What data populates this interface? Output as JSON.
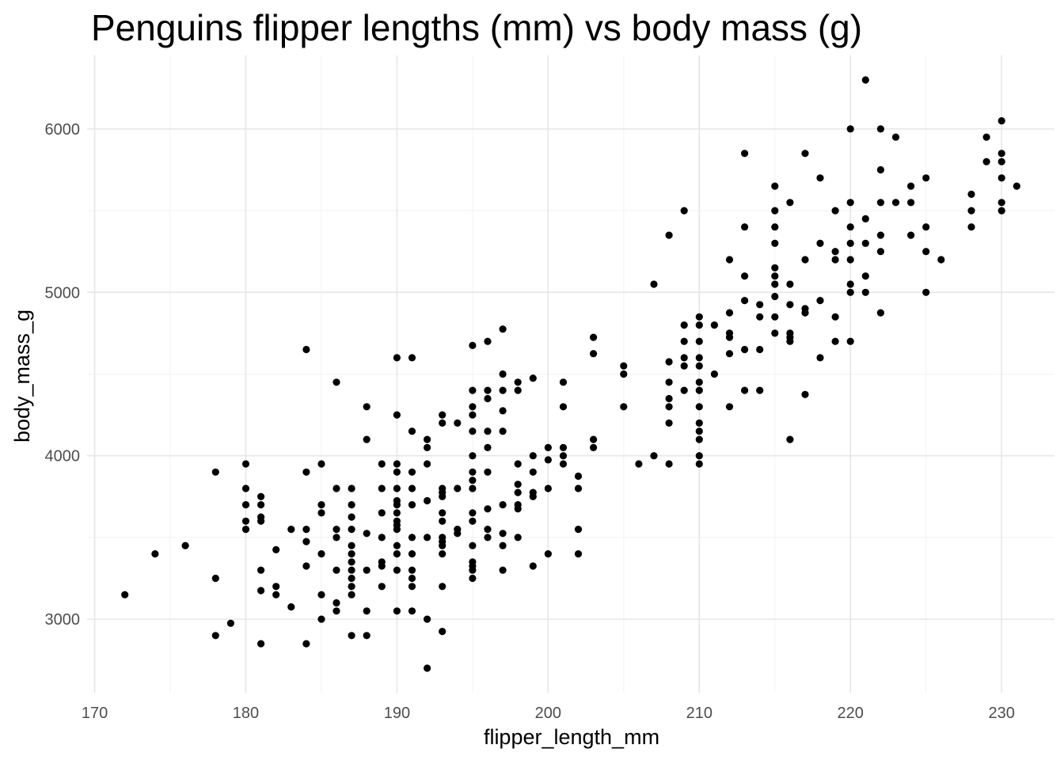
{
  "chart_data": {
    "type": "scatter",
    "title": "Penguins flipper lengths (mm) vs body mass (g)",
    "xlabel": "flipper_length_mm",
    "ylabel": "body_mass_g",
    "xlim": [
      169.5,
      233.5
    ],
    "ylim": [
      2550,
      6450
    ],
    "xticks": [
      170,
      180,
      190,
      200,
      210,
      220,
      230
    ],
    "yticks": [
      3000,
      4000,
      5000,
      6000
    ],
    "grid": true,
    "point_color": "#000000",
    "points": [
      [
        172,
        3150
      ],
      [
        174,
        3400
      ],
      [
        176,
        3450
      ],
      [
        178,
        3900
      ],
      [
        178,
        3250
      ],
      [
        178,
        2900
      ],
      [
        179,
        2975
      ],
      [
        180,
        3950
      ],
      [
        180,
        3800
      ],
      [
        180,
        3700
      ],
      [
        180,
        3600
      ],
      [
        180,
        3550
      ],
      [
        181,
        3750
      ],
      [
        181,
        3700
      ],
      [
        181,
        3625
      ],
      [
        181,
        3600
      ],
      [
        181,
        3300
      ],
      [
        181,
        3175
      ],
      [
        181,
        2850
      ],
      [
        182,
        3425
      ],
      [
        182,
        3200
      ],
      [
        182,
        3150
      ],
      [
        183,
        3550
      ],
      [
        183,
        3075
      ],
      [
        184,
        4650
      ],
      [
        184,
        3900
      ],
      [
        184,
        3550
      ],
      [
        184,
        3475
      ],
      [
        184,
        3325
      ],
      [
        184,
        2850
      ],
      [
        185,
        3950
      ],
      [
        185,
        3700
      ],
      [
        185,
        3650
      ],
      [
        185,
        3400
      ],
      [
        185,
        3150
      ],
      [
        185,
        3000
      ],
      [
        186,
        4450
      ],
      [
        186,
        3800
      ],
      [
        186,
        3550
      ],
      [
        186,
        3500
      ],
      [
        186,
        3300
      ],
      [
        186,
        3100
      ],
      [
        186,
        3050
      ],
      [
        187,
        3800
      ],
      [
        187,
        3700
      ],
      [
        187,
        3625
      ],
      [
        187,
        3550
      ],
      [
        187,
        3450
      ],
      [
        187,
        3400
      ],
      [
        187,
        3350
      ],
      [
        187,
        3300
      ],
      [
        187,
        3250
      ],
      [
        187,
        3200
      ],
      [
        187,
        3150
      ],
      [
        187,
        2900
      ],
      [
        188,
        4300
      ],
      [
        188,
        4100
      ],
      [
        188,
        3525
      ],
      [
        188,
        3300
      ],
      [
        188,
        3050
      ],
      [
        188,
        2900
      ],
      [
        189,
        3950
      ],
      [
        189,
        3800
      ],
      [
        189,
        3650
      ],
      [
        189,
        3500
      ],
      [
        189,
        3350
      ],
      [
        189,
        3325
      ],
      [
        189,
        3200
      ],
      [
        190,
        4600
      ],
      [
        190,
        4250
      ],
      [
        190,
        3950
      ],
      [
        190,
        3900
      ],
      [
        190,
        3800
      ],
      [
        190,
        3725
      ],
      [
        190,
        3700
      ],
      [
        190,
        3650
      ],
      [
        190,
        3600
      ],
      [
        190,
        3575
      ],
      [
        190,
        3550
      ],
      [
        190,
        3450
      ],
      [
        190,
        3400
      ],
      [
        190,
        3300
      ],
      [
        190,
        3050
      ],
      [
        191,
        4600
      ],
      [
        191,
        4150
      ],
      [
        191,
        3900
      ],
      [
        191,
        3800
      ],
      [
        191,
        3700
      ],
      [
        191,
        3500
      ],
      [
        191,
        3400
      ],
      [
        191,
        3300
      ],
      [
        191,
        3250
      ],
      [
        191,
        3200
      ],
      [
        191,
        3050
      ],
      [
        192,
        4100
      ],
      [
        192,
        4050
      ],
      [
        192,
        3950
      ],
      [
        192,
        3725
      ],
      [
        192,
        3500
      ],
      [
        192,
        3000
      ],
      [
        192,
        2700
      ],
      [
        193,
        4250
      ],
      [
        193,
        4200
      ],
      [
        193,
        3800
      ],
      [
        193,
        3775
      ],
      [
        193,
        3750
      ],
      [
        193,
        3650
      ],
      [
        193,
        3600
      ],
      [
        193,
        3500
      ],
      [
        193,
        3475
      ],
      [
        193,
        3450
      ],
      [
        193,
        3400
      ],
      [
        193,
        3200
      ],
      [
        193,
        2925
      ],
      [
        194,
        4200
      ],
      [
        194,
        3800
      ],
      [
        194,
        3550
      ],
      [
        194,
        3525
      ],
      [
        195,
        4675
      ],
      [
        195,
        4400
      ],
      [
        195,
        4300
      ],
      [
        195,
        4250
      ],
      [
        195,
        4150
      ],
      [
        195,
        4000
      ],
      [
        195,
        3900
      ],
      [
        195,
        3850
      ],
      [
        195,
        3800
      ],
      [
        195,
        3650
      ],
      [
        195,
        3600
      ],
      [
        195,
        3450
      ],
      [
        195,
        3350
      ],
      [
        195,
        3325
      ],
      [
        195,
        3300
      ],
      [
        195,
        3250
      ],
      [
        196,
        4700
      ],
      [
        196,
        4400
      ],
      [
        196,
        4350
      ],
      [
        196,
        4150
      ],
      [
        196,
        4050
      ],
      [
        196,
        3900
      ],
      [
        196,
        3675
      ],
      [
        196,
        3550
      ],
      [
        196,
        3500
      ],
      [
        197,
        4775
      ],
      [
        197,
        4500
      ],
      [
        197,
        4400
      ],
      [
        197,
        4275
      ],
      [
        197,
        4150
      ],
      [
        197,
        3700
      ],
      [
        197,
        3525
      ],
      [
        197,
        3450
      ],
      [
        197,
        3300
      ],
      [
        198,
        4450
      ],
      [
        198,
        4400
      ],
      [
        198,
        3950
      ],
      [
        198,
        3825
      ],
      [
        198,
        3775
      ],
      [
        198,
        3700
      ],
      [
        198,
        3675
      ],
      [
        198,
        3500
      ],
      [
        199,
        4475
      ],
      [
        199,
        4000
      ],
      [
        199,
        3900
      ],
      [
        199,
        3775
      ],
      [
        199,
        3750
      ],
      [
        199,
        3325
      ],
      [
        200,
        4050
      ],
      [
        200,
        3975
      ],
      [
        200,
        3800
      ],
      [
        200,
        3400
      ],
      [
        201,
        4450
      ],
      [
        201,
        4300
      ],
      [
        201,
        4050
      ],
      [
        201,
        4000
      ],
      [
        201,
        3950
      ],
      [
        202,
        3875
      ],
      [
        202,
        3800
      ],
      [
        202,
        3550
      ],
      [
        202,
        3400
      ],
      [
        203,
        4725
      ],
      [
        203,
        4625
      ],
      [
        203,
        4100
      ],
      [
        203,
        4050
      ],
      [
        205,
        4550
      ],
      [
        205,
        4500
      ],
      [
        205,
        4300
      ],
      [
        206,
        3950
      ],
      [
        207,
        5050
      ],
      [
        207,
        4000
      ],
      [
        208,
        5350
      ],
      [
        208,
        4575
      ],
      [
        208,
        4450
      ],
      [
        208,
        4350
      ],
      [
        208,
        4300
      ],
      [
        208,
        4200
      ],
      [
        208,
        3950
      ],
      [
        209,
        5500
      ],
      [
        209,
        4800
      ],
      [
        209,
        4700
      ],
      [
        209,
        4600
      ],
      [
        209,
        4550
      ],
      [
        209,
        4400
      ],
      [
        210,
        4850
      ],
      [
        210,
        4800
      ],
      [
        210,
        4700
      ],
      [
        210,
        4600
      ],
      [
        210,
        4550
      ],
      [
        210,
        4450
      ],
      [
        210,
        4400
      ],
      [
        210,
        4300
      ],
      [
        210,
        4200
      ],
      [
        210,
        4150
      ],
      [
        210,
        4100
      ],
      [
        210,
        4000
      ],
      [
        210,
        3950
      ],
      [
        211,
        4800
      ],
      [
        211,
        4500
      ],
      [
        212,
        5200
      ],
      [
        212,
        4875
      ],
      [
        212,
        4750
      ],
      [
        212,
        4725
      ],
      [
        212,
        4625
      ],
      [
        212,
        4300
      ],
      [
        213,
        5850
      ],
      [
        213,
        5400
      ],
      [
        213,
        5100
      ],
      [
        213,
        4950
      ],
      [
        213,
        4650
      ],
      [
        213,
        4400
      ],
      [
        214,
        4925
      ],
      [
        214,
        4850
      ],
      [
        214,
        4650
      ],
      [
        214,
        4400
      ],
      [
        215,
        5650
      ],
      [
        215,
        5500
      ],
      [
        215,
        5400
      ],
      [
        215,
        5300
      ],
      [
        215,
        5150
      ],
      [
        215,
        5100
      ],
      [
        215,
        5050
      ],
      [
        215,
        4975
      ],
      [
        215,
        4850
      ],
      [
        215,
        4750
      ],
      [
        216,
        5550
      ],
      [
        216,
        5050
      ],
      [
        216,
        4925
      ],
      [
        216,
        4750
      ],
      [
        216,
        4725
      ],
      [
        216,
        4700
      ],
      [
        216,
        4100
      ],
      [
        217,
        5850
      ],
      [
        217,
        5200
      ],
      [
        217,
        4900
      ],
      [
        217,
        4875
      ],
      [
        217,
        4375
      ],
      [
        218,
        5700
      ],
      [
        218,
        5300
      ],
      [
        218,
        4950
      ],
      [
        218,
        4600
      ],
      [
        219,
        5500
      ],
      [
        219,
        5250
      ],
      [
        219,
        5200
      ],
      [
        219,
        4850
      ],
      [
        219,
        4700
      ],
      [
        220,
        6000
      ],
      [
        220,
        5550
      ],
      [
        220,
        5400
      ],
      [
        220,
        5300
      ],
      [
        220,
        5200
      ],
      [
        220,
        5050
      ],
      [
        220,
        5000
      ],
      [
        220,
        4700
      ],
      [
        221,
        6300
      ],
      [
        221,
        5450
      ],
      [
        221,
        5300
      ],
      [
        221,
        5100
      ],
      [
        221,
        5000
      ],
      [
        222,
        6000
      ],
      [
        222,
        5750
      ],
      [
        222,
        5550
      ],
      [
        222,
        5350
      ],
      [
        222,
        5250
      ],
      [
        222,
        4875
      ],
      [
        223,
        5950
      ],
      [
        223,
        5550
      ],
      [
        224,
        5650
      ],
      [
        224,
        5550
      ],
      [
        224,
        5350
      ],
      [
        225,
        5700
      ],
      [
        225,
        5400
      ],
      [
        225,
        5250
      ],
      [
        225,
        5000
      ],
      [
        226,
        5200
      ],
      [
        228,
        5600
      ],
      [
        228,
        5500
      ],
      [
        228,
        5400
      ],
      [
        229,
        5950
      ],
      [
        229,
        5800
      ],
      [
        230,
        6050
      ],
      [
        230,
        5850
      ],
      [
        230,
        5800
      ],
      [
        230,
        5700
      ],
      [
        230,
        5550
      ],
      [
        230,
        5500
      ],
      [
        231,
        5650
      ]
    ]
  }
}
